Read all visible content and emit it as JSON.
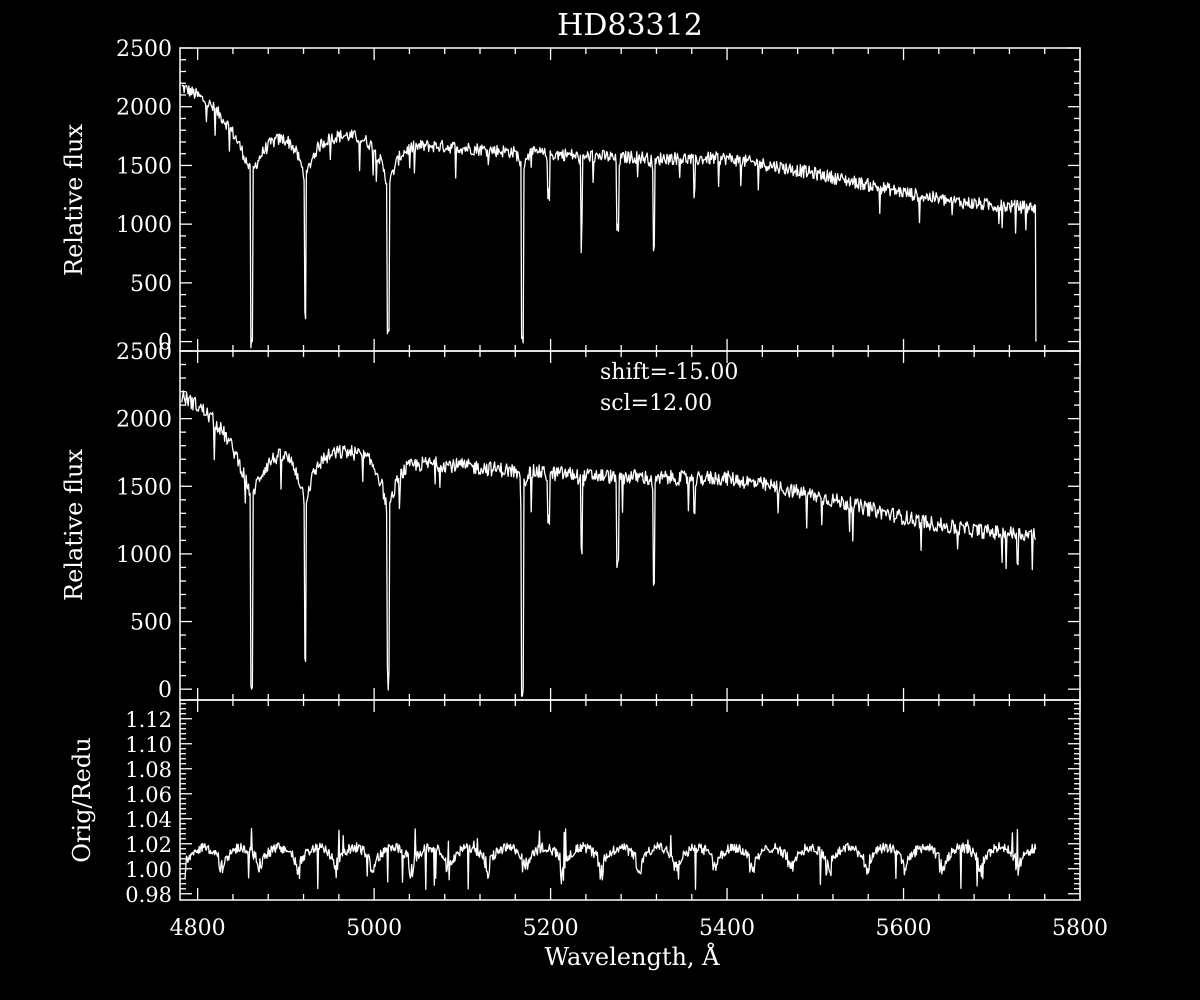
{
  "chart_data": [
    {
      "type": "line",
      "title": "HD83312",
      "ylabel": "Relative flux",
      "xlabel": "",
      "xlim": [
        4780,
        5800
      ],
      "ylim": [
        -80,
        2500
      ],
      "x_ticks": [
        4800,
        5000,
        5200,
        5400,
        5600,
        5800
      ],
      "x_tick_labels_shown": false,
      "y_ticks": [
        0,
        500,
        1000,
        1500,
        2000,
        2500
      ],
      "y_tick_labels": [
        "0",
        "500",
        "1000",
        "1500",
        "2000",
        "2500"
      ],
      "series": [
        {
          "continuum": {
            "x": [
              4780,
              4800,
              4850,
              4900,
              4950,
              5000,
              5050,
              5100,
              5150,
              5200,
              5250,
              5300,
              5350,
              5400,
              5450,
              5500,
              5550,
              5600,
              5650,
              5700,
              5750
            ],
            "y": [
              2200,
              2150,
              2000,
              1930,
              1800,
              1750,
              1680,
              1650,
              1620,
              1600,
              1580,
              1570,
              1560,
              1560,
              1500,
              1430,
              1350,
              1270,
              1200,
              1160,
              1140
            ]
          },
          "absorption_lines": [
            {
              "x": 4861,
              "min": -20,
              "width": 12
            },
            {
              "x": 4922,
              "min": 250,
              "width": 6
            },
            {
              "x": 5016,
              "min": 120,
              "width": 5
            },
            {
              "x": 5168,
              "min": 0,
              "width": 4
            },
            {
              "x": 5198,
              "min": 1250,
              "width": 3
            },
            {
              "x": 5235,
              "min": 1050,
              "width": 3
            },
            {
              "x": 5276,
              "min": 950,
              "width": 3
            },
            {
              "x": 5317,
              "min": 800,
              "width": 3
            },
            {
              "x": 5363,
              "min": 1250,
              "width": 3
            }
          ],
          "end_x": 5750,
          "drops_to_zero_at_end": true
        }
      ]
    },
    {
      "type": "line",
      "ylabel": "Relative flux",
      "annotations": [
        "shift=-15.00",
        "scl=12.00"
      ],
      "xlim": [
        4780,
        5800
      ],
      "ylim": [
        -80,
        2500
      ],
      "x_ticks": [
        4800,
        5000,
        5200,
        5400,
        5600,
        5800
      ],
      "x_tick_labels_shown": false,
      "y_ticks": [
        0,
        500,
        1000,
        1500,
        2000,
        2500
      ],
      "y_tick_labels": [
        "0",
        "500",
        "1000",
        "1500",
        "2000",
        "2500"
      ],
      "series": [
        {
          "continuum": {
            "x": [
              4780,
              4800,
              4850,
              4900,
              4950,
              5000,
              5050,
              5100,
              5150,
              5200,
              5250,
              5300,
              5350,
              5400,
              5450,
              5500,
              5550,
              5600,
              5650,
              5700,
              5750
            ],
            "y": [
              2200,
              2150,
              2000,
              1930,
              1800,
              1750,
              1680,
              1650,
              1620,
              1600,
              1580,
              1570,
              1560,
              1560,
              1500,
              1430,
              1350,
              1270,
              1200,
              1160,
              1140
            ]
          },
          "absorption_lines": [
            {
              "x": 4861,
              "min": -20,
              "width": 12
            },
            {
              "x": 4922,
              "min": 250,
              "width": 6
            },
            {
              "x": 5016,
              "min": 120,
              "width": 5
            },
            {
              "x": 5168,
              "min": 0,
              "width": 4
            },
            {
              "x": 5198,
              "min": 1250,
              "width": 3
            },
            {
              "x": 5235,
              "min": 1050,
              "width": 3
            },
            {
              "x": 5276,
              "min": 950,
              "width": 3
            },
            {
              "x": 5317,
              "min": 800,
              "width": 3
            },
            {
              "x": 5363,
              "min": 1250,
              "width": 3
            }
          ],
          "end_x": 5750,
          "drops_to_zero_at_end": false
        }
      ]
    },
    {
      "type": "line",
      "ylabel": "Orig/Redu",
      "xlabel": "Wavelength, Å",
      "xlim": [
        4780,
        5800
      ],
      "ylim": [
        0.975,
        1.135
      ],
      "x_ticks": [
        4800,
        5000,
        5200,
        5400,
        5600,
        5800
      ],
      "x_tick_labels": [
        "4800",
        "5000",
        "5200",
        "5400",
        "5600",
        "5800"
      ],
      "y_ticks": [
        0.98,
        1.0,
        1.02,
        1.04,
        1.06,
        1.08,
        1.1,
        1.12
      ],
      "y_tick_labels": [
        "0.98",
        "1.00",
        "1.02",
        "1.04",
        "1.06",
        "1.08",
        "1.10",
        "1.12"
      ],
      "series": [
        {
          "ratio_pattern": {
            "x_start": 4785,
            "x_end": 5750,
            "baseline": 1.005,
            "peak": 1.017,
            "period_angstrom": 43,
            "spikes_up_max": 1.033,
            "spikes_down_min": 0.98
          }
        }
      ]
    }
  ]
}
